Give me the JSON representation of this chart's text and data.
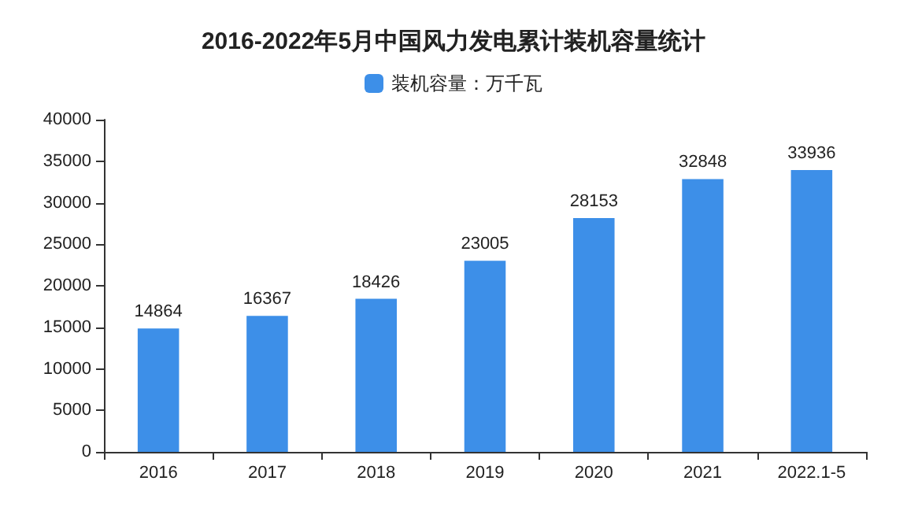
{
  "chart_data": {
    "type": "bar",
    "title": "2016-2022年5月中国风力发电累计装机容量统计",
    "categories": [
      "2016",
      "2017",
      "2018",
      "2019",
      "2020",
      "2021",
      "2022.1-5"
    ],
    "series": [
      {
        "name": "装机容量：万千瓦",
        "color": "#3d8fe8",
        "values": [
          14864,
          16367,
          18426,
          23005,
          28153,
          32848,
          33936
        ]
      }
    ],
    "ylim": [
      0,
      40000
    ],
    "yticks": [
      0,
      5000,
      10000,
      15000,
      20000,
      25000,
      30000,
      35000,
      40000
    ],
    "data_labels": true,
    "grid": false,
    "legend": "top"
  }
}
